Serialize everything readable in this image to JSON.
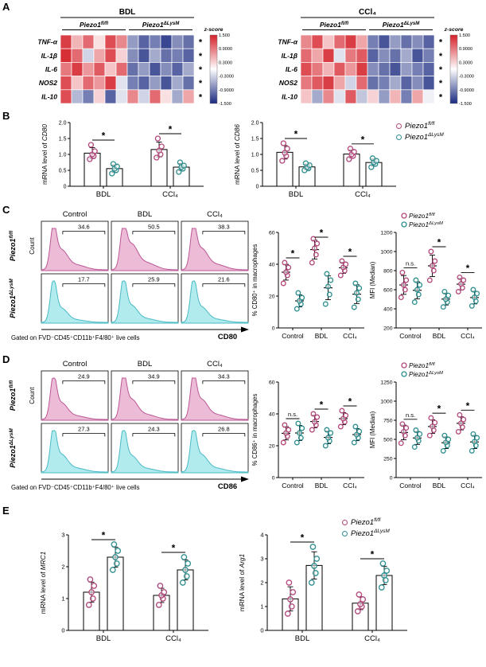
{
  "colors": {
    "flfl": "#b3487c",
    "lysm": "#2f8f8f",
    "histPinkFill": "#ecbcd7",
    "histPinkLine": "#bb5695",
    "histCyanFill": "#b2ebee",
    "histCyanLine": "#49b9c4"
  },
  "genotypes": {
    "flfl": {
      "base": "Piezo1",
      "sup": "fl/fl"
    },
    "lysm": {
      "base": "Piezo1",
      "sup": "ΔLysM"
    }
  },
  "panelA": {
    "label": "A",
    "colorbar": {
      "title": "z-score",
      "ticks": [
        "1.500",
        "0.9000",
        "0.3000",
        "-0.3000",
        "-0.9000",
        "-1.500"
      ]
    },
    "heatmaps": [
      {
        "title": "BDL",
        "rows": [
          "TNF-α",
          "IL-1β",
          "IL-6",
          "NOS2",
          "IL-10"
        ],
        "sig": [
          "*",
          "*",
          "*",
          "*",
          "*"
        ],
        "split": 6,
        "values": [
          [
            1.3,
            0.5,
            1.0,
            0.2,
            1.2,
            0.8,
            -0.7,
            -1.1,
            -0.9,
            -1.3,
            -0.8,
            -1.0
          ],
          [
            1.4,
            1.0,
            -0.3,
            0.6,
            1.2,
            0.3,
            -0.8,
            -1.2,
            -0.6,
            -1.0,
            -0.9,
            -1.1
          ],
          [
            0.9,
            1.3,
            0.7,
            1.1,
            0.4,
            1.0,
            -1.0,
            -0.7,
            -1.2,
            -0.8,
            -1.1,
            -0.6
          ],
          [
            1.2,
            0.4,
            1.0,
            0.7,
            1.3,
            -0.2,
            -0.9,
            -1.1,
            -0.7,
            -1.2,
            -0.6,
            -1.0
          ],
          [
            1.2,
            -0.5,
            -0.9,
            0.3,
            -1.1,
            -0.2,
            0.8,
            -0.3,
            1.0,
            0.2,
            -0.6,
            0.6
          ]
        ]
      },
      {
        "title": "CCl₄",
        "rows": [
          "TNF-α",
          "IL-1β",
          "IL-6",
          "NOS2",
          "IL-10"
        ],
        "sig": [
          "*",
          "*",
          "*",
          "*",
          "*"
        ],
        "split": 6,
        "values": [
          [
            0.8,
            1.2,
            0.4,
            1.0,
            1.3,
            0.6,
            -0.9,
            -1.2,
            -0.7,
            -1.0,
            -0.8,
            -1.1
          ],
          [
            1.0,
            0.6,
            1.3,
            -0.2,
            0.9,
            1.1,
            -1.1,
            -0.8,
            -1.0,
            -0.6,
            -1.2,
            -0.9
          ],
          [
            1.2,
            0.9,
            0.5,
            1.1,
            0.7,
            1.3,
            -0.8,
            -1.0,
            -1.2,
            -0.7,
            -0.9,
            -1.1
          ],
          [
            0.9,
            1.1,
            1.3,
            0.6,
            -0.3,
            1.0,
            -1.0,
            -0.9,
            -0.6,
            -1.1,
            -0.8,
            -1.2
          ],
          [
            0.4,
            -0.6,
            0.8,
            -0.2,
            1.1,
            -0.4,
            0.3,
            -0.7,
            0.5,
            -0.9,
            0.6,
            -0.1
          ]
        ]
      }
    ]
  },
  "panelB": {
    "label": "B",
    "plots": [
      {
        "ylabel": [
          {
            "t": "mRNA level of "
          },
          {
            "t": "CD80",
            "i": true
          }
        ],
        "ylim": [
          0,
          2
        ],
        "yticks": [
          0,
          0.5,
          1,
          1.5,
          2
        ],
        "ytick_labels": [
          "0",
          "0.5",
          "1.0",
          "1.5",
          "2.0"
        ],
        "groups": [
          {
            "cat": "BDL",
            "flfl": [
              0.85,
              0.95,
              1.0,
              1.1,
              1.3
            ],
            "lysm": [
              0.4,
              0.5,
              0.55,
              0.62,
              0.7
            ],
            "sig": "*"
          },
          {
            "cat": "CCl₄",
            "flfl": [
              0.9,
              1.0,
              1.12,
              1.25,
              1.5
            ],
            "lysm": [
              0.45,
              0.55,
              0.6,
              0.65,
              0.75
            ],
            "sig": "*"
          }
        ]
      },
      {
        "ylabel": [
          {
            "t": "mRNA level of "
          },
          {
            "t": "CD86",
            "i": true
          }
        ],
        "ylim": [
          0,
          2
        ],
        "yticks": [
          0,
          0.5,
          1,
          1.5,
          2
        ],
        "ytick_labels": [
          "0",
          "0.5",
          "1.0",
          "1.5",
          "2.0"
        ],
        "groups": [
          {
            "cat": "BDL",
            "flfl": [
              0.8,
              0.95,
              1.05,
              1.18,
              1.35
            ],
            "lysm": [
              0.5,
              0.56,
              0.6,
              0.66,
              0.72
            ],
            "sig": "*"
          },
          {
            "cat": "CCl₄",
            "flfl": [
              0.85,
              0.95,
              1.0,
              1.08,
              1.18
            ],
            "lysm": [
              0.6,
              0.7,
              0.75,
              0.8,
              0.88
            ],
            "sig": "*"
          }
        ]
      }
    ]
  },
  "panelC": {
    "label": "C",
    "flow": {
      "cols": [
        "Control",
        "BDL",
        "CCl₄"
      ],
      "rows": [
        {
          "geno": "flfl",
          "pcts": [
            "34.6",
            "50.5",
            "38.3"
          ]
        },
        {
          "geno": "lysm",
          "pcts": [
            "17.7",
            "25.9",
            "21.6"
          ]
        }
      ],
      "count_label": "Count",
      "xlabel": "CD80",
      "gate_text": "Gated on FVD⁻CD45⁺CD11b⁺F4/80⁺ live cells"
    },
    "scatters": [
      {
        "ylabel": [
          {
            "t": "% CD80⁺ in macrophages"
          }
        ],
        "ylim": [
          0,
          60
        ],
        "yticks": [
          0,
          20,
          40,
          60
        ],
        "ytick_labels": [
          "0",
          "20",
          "40",
          "60"
        ],
        "groups": [
          {
            "cat": "Control",
            "flfl": [
              28,
              33,
              35,
              38,
              41
            ],
            "lysm": [
              12,
              15,
              17,
              19,
              22
            ],
            "sig": "*"
          },
          {
            "cat": "BDL",
            "flfl": [
              41,
              46,
              50,
              53,
              56
            ],
            "lysm": [
              15,
              21,
              26,
              30,
              34
            ],
            "sig": "*"
          },
          {
            "cat": "CCl₄",
            "flfl": [
              33,
              36,
              38,
              40,
              42
            ],
            "lysm": [
              13,
              18,
              22,
              25,
              28
            ],
            "sig": "*"
          }
        ]
      },
      {
        "ylabel": [
          {
            "t": "MFI (Median)"
          }
        ],
        "ylim": [
          200,
          1200
        ],
        "yticks": [
          200,
          400,
          600,
          800,
          1000,
          1200
        ],
        "ytick_labels": [
          "200",
          "400",
          "600",
          "800",
          "1000",
          "1200"
        ],
        "legend": true,
        "groups": [
          {
            "cat": "Control",
            "flfl": [
              520,
              600,
              650,
              700,
              780
            ],
            "lysm": [
              470,
              550,
              600,
              650,
              700
            ],
            "sig": "n.s."
          },
          {
            "cat": "BDL",
            "flfl": [
              700,
              800,
              850,
              900,
              1000
            ],
            "lysm": [
              420,
              470,
              500,
              540,
              580
            ],
            "sig": "*"
          },
          {
            "cat": "CCl₄",
            "flfl": [
              580,
              620,
              660,
              700,
              730
            ],
            "lysm": [
              430,
              480,
              520,
              560,
              600
            ],
            "sig": "*"
          }
        ]
      }
    ]
  },
  "panelD": {
    "label": "D",
    "flow": {
      "cols": [
        "Control",
        "BDL",
        "CCl₄"
      ],
      "rows": [
        {
          "geno": "flfl",
          "pcts": [
            "24.9",
            "34.9",
            "34.3"
          ]
        },
        {
          "geno": "lysm",
          "pcts": [
            "27.3",
            "24.3",
            "26.8"
          ]
        }
      ],
      "count_label": "Count",
      "xlabel": "CD86",
      "gate_text": "Gated on FVD⁻CD45⁺CD11b⁺F4/80⁺ live cells"
    },
    "scatters": [
      {
        "ylabel": [
          {
            "t": "% CD86⁺ in macrophages"
          }
        ],
        "ylim": [
          0,
          60
        ],
        "yticks": [
          0,
          20,
          40,
          60
        ],
        "ytick_labels": [
          "0",
          "20",
          "40",
          "60"
        ],
        "groups": [
          {
            "cat": "Control",
            "flfl": [
              22,
              26,
              28,
              30,
              33
            ],
            "lysm": [
              22,
              25,
              28,
              31,
              34
            ],
            "sig": "n.s."
          },
          {
            "cat": "BDL",
            "flfl": [
              30,
              33,
              35,
              38,
              40
            ],
            "lysm": [
              20,
              23,
              25,
              28,
              30
            ],
            "sig": "*"
          },
          {
            "cat": "CCl₄",
            "flfl": [
              32,
              35,
              37,
              39,
              42
            ],
            "lysm": [
              22,
              25,
              27,
              29,
              32
            ],
            "sig": "*"
          }
        ]
      },
      {
        "ylabel": [
          {
            "t": "MFI (Median)"
          }
        ],
        "ylim": [
          0,
          1250
        ],
        "yticks": [
          0,
          250,
          500,
          750,
          1000,
          1250
        ],
        "ytick_labels": [
          "0",
          "250",
          "500",
          "750",
          "1000",
          "1250"
        ],
        "legend": true,
        "groups": [
          {
            "cat": "Control",
            "flfl": [
              450,
              550,
              600,
              650,
              700
            ],
            "lysm": [
              400,
              480,
              520,
              570,
              620
            ],
            "sig": "n.s."
          },
          {
            "cat": "BDL",
            "flfl": [
              550,
              620,
              670,
              720,
              780
            ],
            "lysm": [
              350,
              420,
              460,
              500,
              550
            ],
            "sig": "*"
          },
          {
            "cat": "CCl₄",
            "flfl": [
              600,
              660,
              710,
              760,
              820
            ],
            "lysm": [
              350,
              420,
              470,
              520,
              570
            ],
            "sig": "*"
          }
        ]
      }
    ]
  },
  "panelE": {
    "label": "E",
    "plots": [
      {
        "ylabel": [
          {
            "t": "mRNA level of "
          },
          {
            "t": "MRC1",
            "i": true
          }
        ],
        "ylim": [
          0,
          3
        ],
        "yticks": [
          0,
          1,
          2,
          3
        ],
        "ytick_labels": [
          "0",
          "1",
          "2",
          "3"
        ],
        "groups": [
          {
            "cat": "BDL",
            "flfl": [
              0.8,
              1.0,
              1.2,
              1.4,
              1.6
            ],
            "lysm": [
              1.9,
              2.1,
              2.3,
              2.5,
              2.7
            ],
            "sig": "*"
          },
          {
            "cat": "CCl₄",
            "flfl": [
              0.8,
              1.0,
              1.1,
              1.2,
              1.4
            ],
            "lysm": [
              1.5,
              1.7,
              1.9,
              2.1,
              2.3
            ],
            "sig": "*"
          }
        ]
      },
      {
        "ylabel": [
          {
            "t": "mRNA level of "
          },
          {
            "t": "Arg1",
            "i": true
          }
        ],
        "ylim": [
          0,
          4
        ],
        "yticks": [
          0,
          1,
          2,
          3,
          4
        ],
        "ytick_labels": [
          "0",
          "1",
          "2",
          "3",
          "4"
        ],
        "groups": [
          {
            "cat": "BDL",
            "flfl": [
              0.7,
              1.0,
              1.3,
              1.6,
              2.0
            ],
            "lysm": [
              2.0,
              2.4,
              2.7,
              3.0,
              3.5
            ],
            "sig": "*"
          },
          {
            "cat": "CCl₄",
            "flfl": [
              0.8,
              1.0,
              1.1,
              1.3,
              1.5
            ],
            "lysm": [
              1.8,
              2.1,
              2.3,
              2.5,
              2.8
            ],
            "sig": "*"
          }
        ]
      }
    ]
  }
}
